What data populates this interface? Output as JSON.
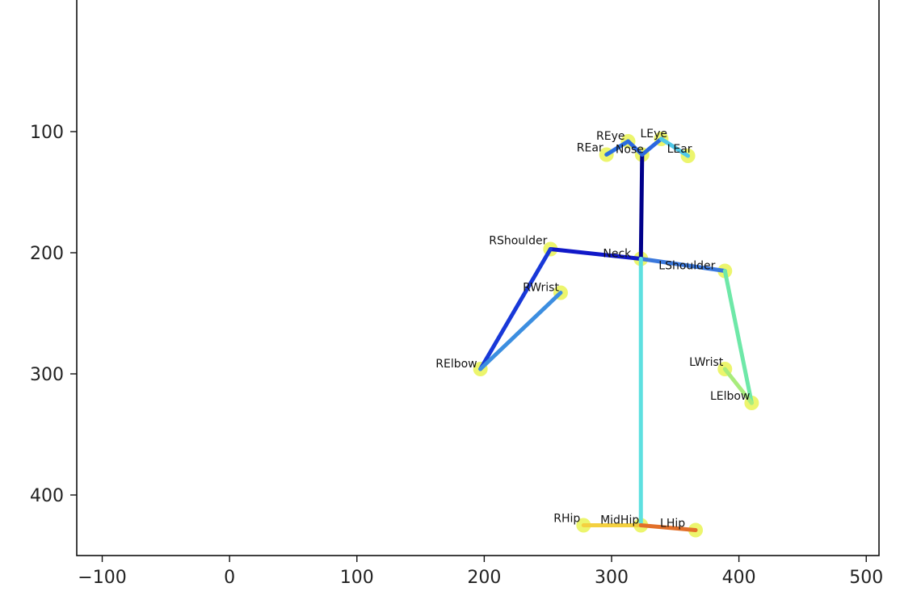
{
  "chart_data": {
    "type": "scatter",
    "title": "",
    "xlabel": "",
    "ylabel": "",
    "xlim": [
      -120,
      510
    ],
    "ylim": [
      450,
      -10
    ],
    "y_inverted": true,
    "grid": false,
    "x_ticks": [
      -100,
      0,
      100,
      200,
      300,
      400,
      500
    ],
    "y_ticks": [
      100,
      200,
      300,
      400
    ],
    "keypoints": [
      {
        "name": "Nose",
        "x": 324,
        "y": 119
      },
      {
        "name": "Neck",
        "x": 323,
        "y": 205
      },
      {
        "name": "RShoulder",
        "x": 252,
        "y": 197
      },
      {
        "name": "RElbow",
        "x": 197,
        "y": 296
      },
      {
        "name": "RWrist",
        "x": 260,
        "y": 233
      },
      {
        "name": "LShoulder",
        "x": 389,
        "y": 215
      },
      {
        "name": "LElbow",
        "x": 410,
        "y": 324
      },
      {
        "name": "LWrist",
        "x": 389,
        "y": 296
      },
      {
        "name": "MidHip",
        "x": 323,
        "y": 425
      },
      {
        "name": "RHip",
        "x": 278,
        "y": 425
      },
      {
        "name": "LHip",
        "x": 366,
        "y": 429
      },
      {
        "name": "REye",
        "x": 313,
        "y": 108
      },
      {
        "name": "LEye",
        "x": 339,
        "y": 106
      },
      {
        "name": "REar",
        "x": 296,
        "y": 119
      },
      {
        "name": "LEar",
        "x": 360,
        "y": 120
      }
    ],
    "limbs": [
      {
        "from": "Nose",
        "to": "Neck",
        "color": "#00008b"
      },
      {
        "from": "Neck",
        "to": "RShoulder",
        "color": "#1018c8"
      },
      {
        "from": "RShoulder",
        "to": "RElbow",
        "color": "#1838d8"
      },
      {
        "from": "RElbow",
        "to": "RWrist",
        "color": "#3c8ee0"
      },
      {
        "from": "Neck",
        "to": "LShoulder",
        "color": "#3a78dc"
      },
      {
        "from": "LShoulder",
        "to": "LElbow",
        "color": "#6ee8a8"
      },
      {
        "from": "LElbow",
        "to": "LWrist",
        "color": "#a8ec7c"
      },
      {
        "from": "Neck",
        "to": "MidHip",
        "color": "#5ee0e0"
      },
      {
        "from": "MidHip",
        "to": "RHip",
        "color": "#f4d040"
      },
      {
        "from": "MidHip",
        "to": "LHip",
        "color": "#e2702a"
      },
      {
        "from": "Nose",
        "to": "REye",
        "color": "#2c68e0"
      },
      {
        "from": "Nose",
        "to": "LEye",
        "color": "#2c68e0"
      },
      {
        "from": "REye",
        "to": "REar",
        "color": "#2a6ee0"
      },
      {
        "from": "LEye",
        "to": "LEar",
        "color": "#50c8e8"
      }
    ],
    "keypoint_color": "#e6f23c"
  }
}
